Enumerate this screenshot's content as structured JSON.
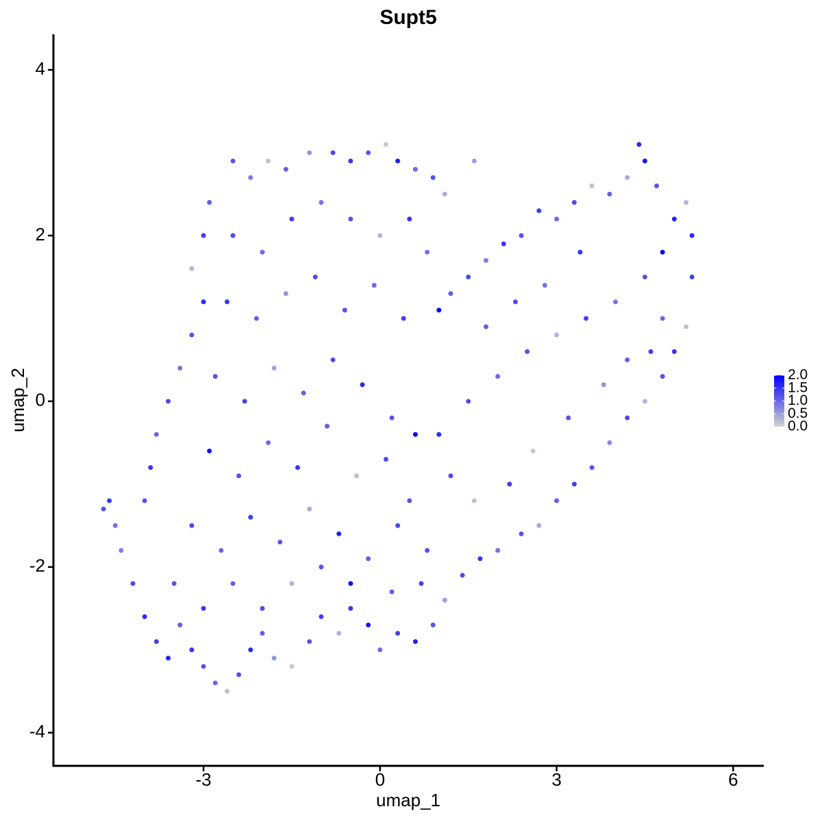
{
  "chart_data": {
    "type": "scatter",
    "title": "Supt5",
    "x_label": "umap_1",
    "y_label": "umap_2",
    "xlim": [
      -5.55,
      6.52
    ],
    "ylim": [
      -4.4,
      4.43
    ],
    "xticks": [
      -3,
      0,
      3,
      6
    ],
    "yticks": [
      -4,
      -2,
      0,
      2,
      4
    ],
    "color_scale": {
      "low": "#d3d3d3",
      "high": "#0000ff"
    },
    "colorlim": [
      0,
      2
    ],
    "colorticks": [
      {
        "value": 0,
        "label": "0.0"
      },
      {
        "value": 0.5,
        "label": "0.5"
      },
      {
        "value": 1,
        "label": "1.0"
      },
      {
        "value": 1.5,
        "label": "1.5"
      },
      {
        "value": 2,
        "label": "2.0"
      }
    ],
    "x": [
      -4.7,
      -4.6,
      -4.5,
      -4.4,
      -4.2,
      -4.0,
      -3.8,
      -3.6,
      -3.4,
      -3.2,
      -3.0,
      -2.8,
      -2.6,
      -2.4,
      -2.2,
      -2.0,
      -1.8,
      -1.5,
      -1.2,
      -1.0,
      -0.7,
      -0.5,
      -0.2,
      0.0,
      0.3,
      0.6,
      0.9,
      1.1,
      1.4,
      1.7,
      2.0,
      2.4,
      2.7,
      3.0,
      3.3,
      3.6,
      3.9,
      4.2,
      4.5,
      4.8,
      5.0,
      5.2,
      5.3,
      5.3,
      5.2,
      5.0,
      4.8,
      4.7,
      4.5,
      4.4,
      4.2,
      3.9,
      3.6,
      3.3,
      3.0,
      2.7,
      2.4,
      2.1,
      1.8,
      1.5,
      1.2,
      1.0,
      4.5,
      4.0,
      3.5,
      3.0,
      2.5,
      2.0,
      1.5,
      1.0,
      0.6,
      4.2,
      3.8,
      3.2,
      2.6,
      2.2,
      1.6,
      1.2,
      3.4,
      2.8,
      2.3,
      1.8,
      4.8,
      4.6,
      -2.5,
      -2.2,
      -1.9,
      -1.6,
      -1.2,
      -0.8,
      -0.5,
      -0.2,
      0.1,
      0.3,
      0.6,
      0.9,
      1.1,
      1.6,
      -2.9,
      -3.0,
      -3.2,
      -3.0,
      -3.2,
      -3.4,
      -3.6,
      -3.8,
      -3.9,
      -4.0,
      -2.5,
      -2.0,
      -1.5,
      -1.0,
      -0.5,
      0.0,
      0.5,
      -2.6,
      -2.1,
      -1.6,
      -1.1,
      -0.6,
      -0.1,
      0.4,
      0.8,
      -2.8,
      -2.3,
      -1.8,
      -1.3,
      -0.8,
      -0.3,
      0.2,
      -2.9,
      -2.4,
      -1.9,
      -1.4,
      -0.9,
      -0.4,
      0.1,
      0.5,
      -3.2,
      -2.7,
      -2.2,
      -1.7,
      -1.2,
      -0.7,
      -0.2,
      0.3,
      0.8,
      -3.5,
      -3.0,
      -2.5,
      -2.0,
      -1.5,
      -1.0,
      -0.5,
      0.2,
      0.7
    ],
    "values": [
      -1.3,
      -1.2,
      -1.5,
      -1.8,
      -2.2,
      -2.6,
      -2.9,
      -3.1,
      -2.7,
      -3.0,
      -3.2,
      -3.4,
      -3.5,
      -3.3,
      -3.0,
      -2.8,
      -3.1,
      -3.2,
      -2.9,
      -2.6,
      -2.8,
      -2.5,
      -2.7,
      -3.0,
      -2.8,
      -2.9,
      -2.7,
      -2.4,
      -2.1,
      -1.9,
      -1.8,
      -1.6,
      -1.5,
      -1.2,
      -1.0,
      -0.8,
      -0.5,
      -0.2,
      0.0,
      0.3,
      0.6,
      0.9,
      1.5,
      2.0,
      2.4,
      2.2,
      1.8,
      2.6,
      2.9,
      3.1,
      2.7,
      2.5,
      2.6,
      2.4,
      2.2,
      2.3,
      2.0,
      1.9,
      1.7,
      1.5,
      1.3,
      1.1,
      1.5,
      1.2,
      1.0,
      0.8,
      0.6,
      0.3,
      0.0,
      -0.4,
      -0.4,
      0.5,
      0.2,
      -0.2,
      -0.6,
      -1.0,
      -1.2,
      -0.9,
      1.8,
      1.4,
      1.2,
      0.9,
      1.0,
      0.6,
      2.9,
      2.7,
      2.9,
      2.8,
      3.0,
      3.0,
      2.9,
      3.0,
      3.1,
      2.9,
      2.8,
      2.7,
      2.5,
      2.9,
      2.4,
      2.0,
      1.6,
      1.2,
      0.8,
      0.4,
      0.0,
      -0.4,
      -0.8,
      -1.2,
      2.0,
      1.8,
      2.2,
      2.4,
      2.2,
      2.0,
      2.2,
      1.2,
      1.0,
      1.3,
      1.5,
      1.1,
      1.4,
      1.0,
      1.8,
      0.3,
      0.0,
      0.4,
      0.1,
      0.5,
      0.2,
      -0.2,
      -0.6,
      -0.9,
      -0.5,
      -0.8,
      -0.3,
      -0.9,
      -0.7,
      -1.2,
      -1.5,
      -1.8,
      -1.4,
      -1.7,
      -1.3,
      -1.6,
      -1.9,
      -1.5,
      -1.8,
      -2.2,
      -2.5,
      -2.2,
      -2.5,
      -2.2,
      -2.0,
      -2.2,
      -2.3,
      -2.2
    ],
    "expression": [
      1.2,
      1.5,
      0.9,
      0.8,
      1.3,
      1.6,
      1.4,
      1.7,
      1.1,
      1.5,
      1.2,
      1.0,
      0.2,
      1.3,
      1.6,
      1.1,
      0.6,
      0.1,
      1.2,
      1.4,
      0.3,
      1.5,
      1.8,
      1.0,
      1.4,
      1.7,
      1.2,
      0.5,
      1.3,
      1.5,
      0.9,
      1.2,
      0.4,
      1.1,
      1.4,
      1.2,
      0.7,
      1.3,
      0.3,
      1.2,
      1.5,
      0.2,
      1.4,
      1.6,
      0.3,
      1.7,
      1.9,
      1.2,
      1.8,
      1.6,
      0.4,
      1.1,
      0.2,
      1.3,
      1.0,
      1.4,
      1.2,
      1.5,
      0.8,
      1.3,
      1.1,
      1.9,
      1.2,
      0.9,
      1.4,
      0.3,
      1.2,
      1.0,
      1.3,
      1.6,
      2.0,
      1.1,
      0.6,
      1.2,
      0.1,
      1.4,
      0.2,
      1.3,
      1.5,
      0.9,
      1.3,
      1.1,
      1.0,
      1.4,
      1.2,
      0.8,
      0.2,
      1.1,
      0.6,
      1.3,
      1.5,
      1.2,
      0.1,
      1.7,
      1.0,
      1.2,
      0.4,
      0.5,
      1.1,
      1.4,
      0.3,
      1.6,
      1.2,
      0.9,
      1.3,
      1.0,
      1.5,
      1.2,
      1.3,
      1.0,
      1.4,
      0.9,
      1.2,
      0.3,
      1.5,
      1.5,
      1.1,
      0.6,
      1.3,
      1.2,
      1.0,
      1.4,
      0.9,
      1.2,
      1.4,
      0.5,
      1.1,
      1.3,
      1.6,
      1.2,
      1.8,
      1.2,
      1.0,
      1.5,
      1.1,
      0.2,
      1.3,
      1.2,
      1.3,
      1.0,
      1.4,
      1.2,
      0.4,
      1.7,
      1.1,
      1.3,
      1.2,
      1.2,
      1.5,
      1.1,
      1.3,
      0.3,
      1.2,
      1.9,
      1.1,
      1.4
    ]
  }
}
